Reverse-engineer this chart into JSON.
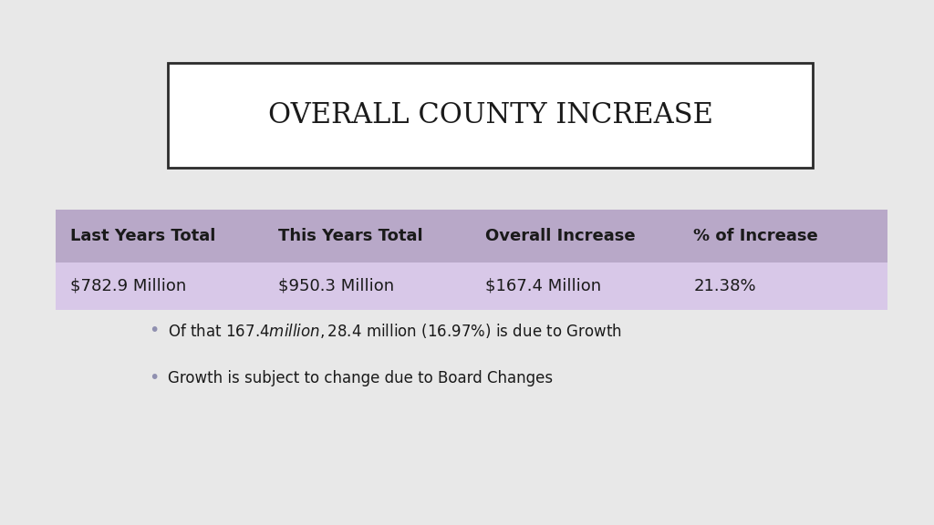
{
  "title": "OVERALL COUNTY INCREASE",
  "background_color": "#e8e8e8",
  "title_box_bg": "#ffffff",
  "title_box_border": "#2b2b2b",
  "table_headers": [
    "Last Years Total",
    "This Years Total",
    "Overall Increase",
    "% of Increase"
  ],
  "table_values": [
    "$782.9 Million",
    "$950.3 Million",
    "$167.4 Million",
    "21.38%"
  ],
  "header_bg": "#b8a8c8",
  "row_bg": "#d8c8e8",
  "bullet_points": [
    "Of that $167.4 million, $28.4 million (16.97%) is due to Growth",
    "Growth is subject to change due to Board Changes"
  ],
  "bullet_color": "#9090b0",
  "text_color": "#1a1a1a",
  "title_fontsize": 22,
  "table_header_fontsize": 13,
  "table_value_fontsize": 13,
  "bullet_fontsize": 12
}
